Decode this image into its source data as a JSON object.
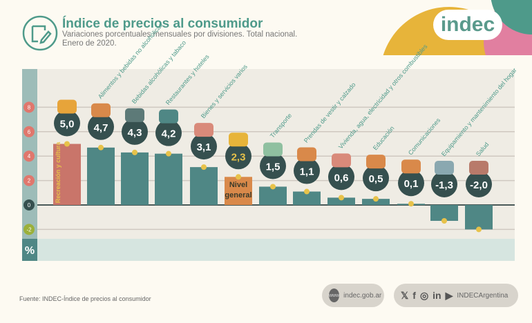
{
  "header": {
    "title": "Índice de precios al consumidor",
    "subtitle": "Variaciones porcentuales mensuales por divisiones. Total nacional.",
    "subtitle2": "Enero de 2020.",
    "logo": "indec"
  },
  "chart_data": {
    "type": "bar",
    "ylabel": "%",
    "ylim": [
      -2.5,
      8.5
    ],
    "yticks": [
      8,
      6,
      4,
      2,
      0,
      -2
    ],
    "grid": true,
    "categories": [
      "Recreación y cultura",
      "Alimentos y bebidas no alcohólicas",
      "Bebidas alcohólicas y tabaco",
      "Restaurantes y hoteles",
      "Bienes y servicios varios",
      "Nivel general",
      "Transporte",
      "Prendas de vestir y calzado",
      "Vivienda, agua, electricidad y otros combustibles",
      "Educación",
      "Comunicaciones",
      "Equipamiento y mantenimiento del hogar",
      "Salud"
    ],
    "values": [
      5.0,
      4.7,
      4.3,
      4.2,
      3.1,
      2.3,
      1.5,
      1.1,
      0.6,
      0.5,
      0.1,
      -1.3,
      -2.0
    ],
    "labels": [
      "5,0",
      "4,7",
      "4,3",
      "4,2",
      "3,1",
      "2,3",
      "1,5",
      "1,1",
      "0,6",
      "0,5",
      "0,1",
      "-1,3",
      "-2,0"
    ],
    "colors": {
      "bar": "#4f8785",
      "general": "#d9894a",
      "highlight": "#c9756a",
      "label_bubble": "#36504f",
      "text": "#4e9a8a"
    }
  },
  "footer": {
    "source": "Fuente: INDEC-Índice de precios al consumidor",
    "web": "indec.gob.ar",
    "www": "www",
    "social": "INDECArgentina",
    "icons": [
      "twitter-icon",
      "facebook-icon",
      "instagram-icon",
      "linkedin-icon",
      "youtube-icon"
    ]
  }
}
